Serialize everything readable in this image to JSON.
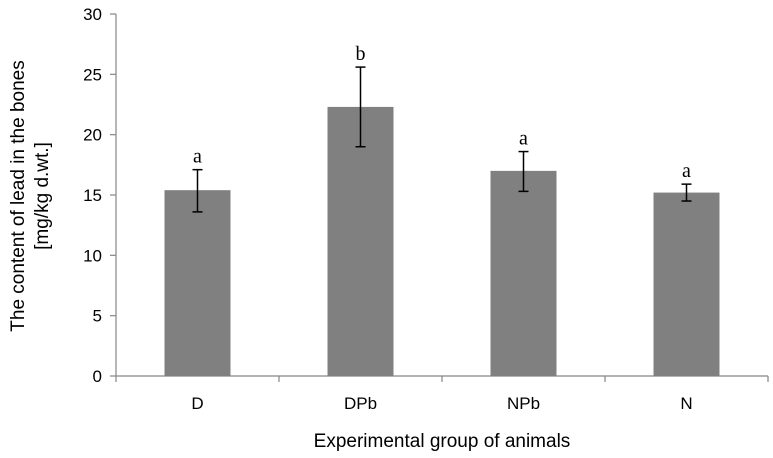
{
  "chart_data": {
    "type": "bar",
    "categories": [
      "D",
      "DPb",
      "NPb",
      "N"
    ],
    "values": [
      15.4,
      22.3,
      17.0,
      15.2
    ],
    "error_low": [
      13.6,
      19.0,
      15.3,
      14.5
    ],
    "error_high": [
      17.1,
      25.6,
      18.6,
      15.9
    ],
    "significance_labels": [
      "a",
      "b",
      "a",
      "a"
    ],
    "xlabel": "Experimental group of animals",
    "ylabel_line1": "The content of lead in the bones",
    "ylabel_line2": "[mg/kg d.wt.]",
    "ylim": [
      0,
      30
    ],
    "yticks": [
      "0",
      "5",
      "10",
      "15",
      "20",
      "25",
      "30"
    ],
    "grid": false,
    "bar_color": "#808080"
  }
}
